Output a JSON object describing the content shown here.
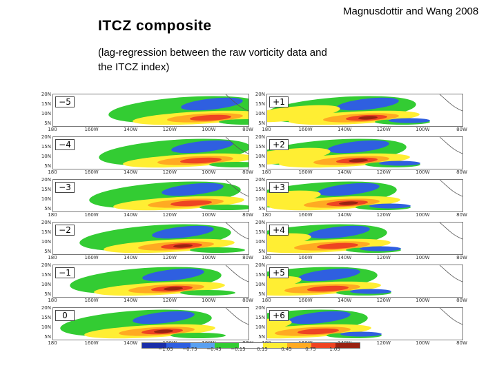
{
  "slide": {
    "title": "ITCZ composite",
    "subtitle": "(lag-regression between the raw vorticity data and the ITCZ index)",
    "credit": "Magnusdottir and Wang 2008"
  },
  "figure": {
    "lat_ticks": [
      "20N",
      "15N",
      "10N",
      "5N"
    ],
    "lon_ticks": [
      "180",
      "160W",
      "140W",
      "120W",
      "100W",
      "80W"
    ],
    "left_lags": [
      "−5",
      "−4",
      "−3",
      "−2",
      "−1",
      "0"
    ],
    "right_lags": [
      "+1",
      "+2",
      "+3",
      "+4",
      "+5",
      "+6"
    ],
    "colorbar": {
      "labels": [
        "−1.05",
        "−0.75",
        "−0.45",
        "−0.15",
        "0.15",
        "0.45",
        "0.75",
        "1.05"
      ],
      "colors": [
        "#1a2ea8",
        "#2f5fe0",
        "#5aa0f0",
        "#33cc33",
        "#ffffff",
        "#ffee33",
        "#ffaa22",
        "#ee4422",
        "#992211"
      ]
    },
    "colors": {
      "neg_strong": "#2f5fe0",
      "neg_weak": "#33cc33",
      "pos_weak": "#ffee33",
      "pos_mid": "#ffaa22",
      "pos_strong": "#ee4422",
      "pos_max": "#992211"
    }
  }
}
